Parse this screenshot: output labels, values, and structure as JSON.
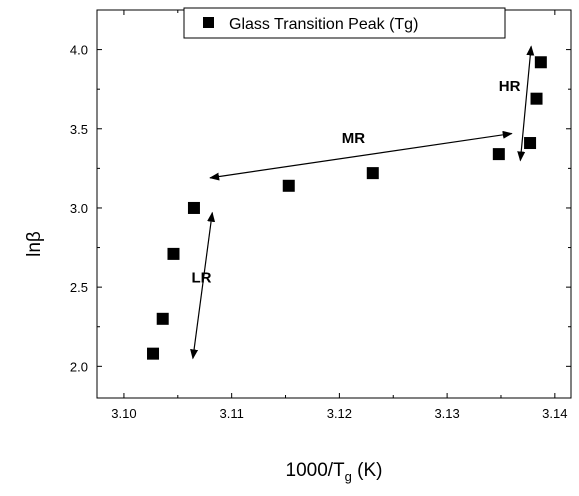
{
  "chart_data": {
    "type": "scatter",
    "series": [
      {
        "name": "Glass Transition Peak (Tg)",
        "points": [
          {
            "x": 3.1027,
            "y": 2.08
          },
          {
            "x": 3.1036,
            "y": 2.3
          },
          {
            "x": 3.1046,
            "y": 2.71
          },
          {
            "x": 3.1065,
            "y": 3.0
          },
          {
            "x": 3.1153,
            "y": 3.14
          },
          {
            "x": 3.1231,
            "y": 3.22
          },
          {
            "x": 3.1348,
            "y": 3.34
          },
          {
            "x": 3.1377,
            "y": 3.41
          },
          {
            "x": 3.1383,
            "y": 3.69
          },
          {
            "x": 3.1387,
            "y": 3.92
          }
        ]
      }
    ],
    "xlabel_main": "1000/T",
    "xlabel_sub": "g",
    "xlabel_unit": " (K)",
    "ylabel": "lnβ",
    "xlim": [
      3.0975,
      3.1415
    ],
    "ylim": [
      1.8,
      4.25
    ],
    "xticks": [
      3.1,
      3.11,
      3.12,
      3.13,
      3.14
    ],
    "xtick_labels": [
      "3.10",
      "3.11",
      "3.12",
      "3.13",
      "3.14"
    ],
    "yticks": [
      2.0,
      2.5,
      3.0,
      3.5,
      4.0
    ],
    "ytick_labels": [
      "2.0",
      "2.5",
      "3.0",
      "3.5",
      "4.0"
    ],
    "legend_position": "top-center",
    "annotations": [
      {
        "label": "LR",
        "arrow": {
          "x1": 3.1082,
          "y1": 2.97,
          "x2": 3.1064,
          "y2": 2.05
        },
        "text_x": 3.1072,
        "text_y": 2.53
      },
      {
        "label": "MR",
        "arrow": {
          "x1": 3.108,
          "y1": 3.19,
          "x2": 3.136,
          "y2": 3.47
        },
        "text_x": 3.1213,
        "text_y": 3.41
      },
      {
        "label": "HR",
        "arrow": {
          "x1": 3.1378,
          "y1": 4.02,
          "x2": 3.1368,
          "y2": 3.3
        },
        "text_x": 3.1358,
        "text_y": 3.74
      }
    ]
  }
}
